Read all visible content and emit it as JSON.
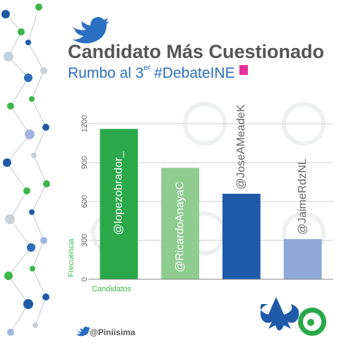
{
  "chart_data": {
    "type": "bar",
    "title": "Candidato Más Cuestionado",
    "subtitle": [
      "Rumbo al 3",
      "er",
      "#DebateINE"
    ],
    "y_label": "Frecuencia",
    "x_label": "Candidatos",
    "categories": [
      "@lopezobrador_",
      "@RicardoAnayaC",
      "@JoseAMeadeK",
      "@JaimeRdzNL"
    ],
    "values": [
      1160,
      860,
      660,
      310
    ],
    "colors": [
      "#2aa84a",
      "#8fcc8f",
      "#1f5aa8",
      "#8fa8d8"
    ],
    "ylim": [
      0,
      1200
    ],
    "yticks": [
      0,
      300,
      600,
      900,
      1200
    ],
    "grid": true,
    "footer": "@Piniisima"
  }
}
